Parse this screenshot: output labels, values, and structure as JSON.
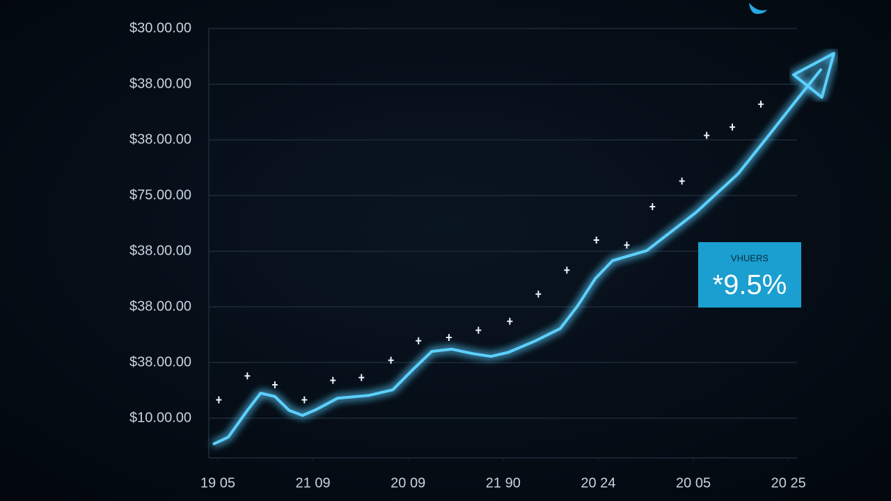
{
  "chart_data": {
    "type": "line",
    "xlim": [
      -0.1,
      6.5
    ],
    "xticks": [
      {
        "value": 0,
        "label": "19 05"
      },
      {
        "value": 1,
        "label": "21 09"
      },
      {
        "value": 2,
        "label": "20 09"
      },
      {
        "value": 3,
        "label": "21 90"
      },
      {
        "value": 4,
        "label": "20 24"
      },
      {
        "value": 5,
        "label": "20 05"
      },
      {
        "value": 6,
        "label": "20 25"
      }
    ],
    "ylim": [
      3,
      81
    ],
    "yticks": [
      {
        "value": 80,
        "label": "$30.00.00"
      },
      {
        "value": 70,
        "label": "$38.00.00"
      },
      {
        "value": 60,
        "label": "$38.00.00"
      },
      {
        "value": 50,
        "label": "$75.00.00"
      },
      {
        "value": 40,
        "label": "$38.00.00"
      },
      {
        "value": 30,
        "label": "$38.00.00"
      },
      {
        "value": 20,
        "label": "$38.00.00"
      },
      {
        "value": 10,
        "label": "$10.00.00"
      }
    ],
    "grid": true,
    "series": [
      {
        "color": "#5cd0ff",
        "x": [
          -0.04,
          0.11,
          0.31,
          0.45,
          0.6,
          0.75,
          0.89,
          1.04,
          1.26,
          1.59,
          1.84,
          2.06,
          2.25,
          2.46,
          2.68,
          2.87,
          3.05,
          3.34,
          3.6,
          3.78,
          3.97,
          4.15,
          4.51,
          5.03,
          5.47,
          5.76,
          6.05,
          6.34
        ],
        "values": [
          5.4,
          6.6,
          11.4,
          14.5,
          13.9,
          11.4,
          10.5,
          11.6,
          13.6,
          14.1,
          15.1,
          18.9,
          22.0,
          22.4,
          21.6,
          21.1,
          21.8,
          23.9,
          26.1,
          30.1,
          35.1,
          38.3,
          40.1,
          47.0,
          53.9,
          60.1,
          66.4,
          72.6
        ]
      }
    ],
    "markers": {
      "color": "#e8f4ff",
      "x": [
        0.01,
        0.31,
        0.6,
        0.91,
        1.21,
        1.51,
        1.82,
        2.11,
        2.43,
        2.74,
        3.07,
        3.37,
        3.67,
        3.98,
        4.3,
        4.57,
        4.88,
        5.14,
        5.41,
        5.71
      ],
      "values": [
        13.3,
        17.6,
        16.0,
        13.3,
        16.8,
        17.3,
        20.4,
        23.9,
        24.5,
        25.8,
        27.4,
        32.3,
        36.6,
        42.0,
        41.1,
        48.0,
        52.6,
        60.8,
        62.3,
        66.4
      ]
    },
    "annotation": {
      "label": "VHUERS",
      "text": "*9.5%"
    }
  }
}
